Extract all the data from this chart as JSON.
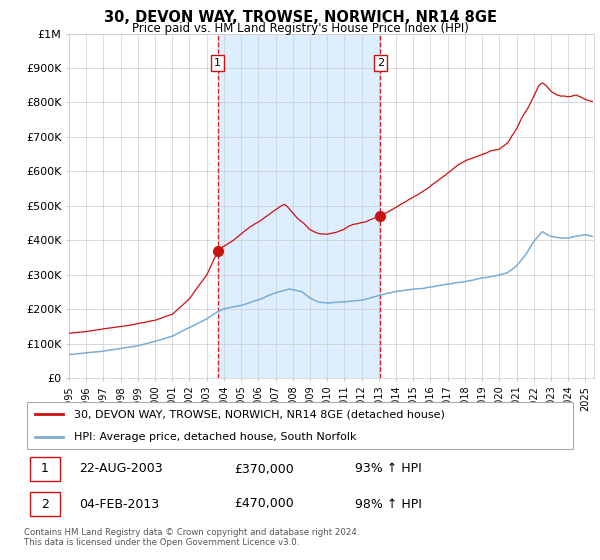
{
  "title": "30, DEVON WAY, TROWSE, NORWICH, NR14 8GE",
  "subtitle": "Price paid vs. HM Land Registry's House Price Index (HPI)",
  "ylim": [
    0,
    1000000
  ],
  "xlim_start": 1995.0,
  "xlim_end": 2025.5,
  "hpi_color": "#7aadd4",
  "price_color": "#cc1111",
  "sale1_x": 2003.64,
  "sale1_y": 370000,
  "sale2_x": 2013.09,
  "sale2_y": 470000,
  "sale1_label": "1",
  "sale2_label": "2",
  "shade_color": "#ddeeff",
  "grid_color": "#cccccc",
  "legend_line1": "30, DEVON WAY, TROWSE, NORWICH, NR14 8GE (detached house)",
  "legend_line2": "HPI: Average price, detached house, South Norfolk",
  "table_row1_num": "1",
  "table_row1_date": "22-AUG-2003",
  "table_row1_price": "£370,000",
  "table_row1_hpi": "93% ↑ HPI",
  "table_row2_num": "2",
  "table_row2_date": "04-FEB-2013",
  "table_row2_price": "£470,000",
  "table_row2_hpi": "98% ↑ HPI",
  "footnote": "Contains HM Land Registry data © Crown copyright and database right 2024.\nThis data is licensed under the Open Government Licence v3.0.",
  "ytick_labels": [
    "£0",
    "£100K",
    "£200K",
    "£300K",
    "£400K",
    "£500K",
    "£600K",
    "£700K",
    "£800K",
    "£900K",
    "£1M"
  ],
  "ytick_values": [
    0,
    100000,
    200000,
    300000,
    400000,
    500000,
    600000,
    700000,
    800000,
    900000,
    1000000
  ]
}
